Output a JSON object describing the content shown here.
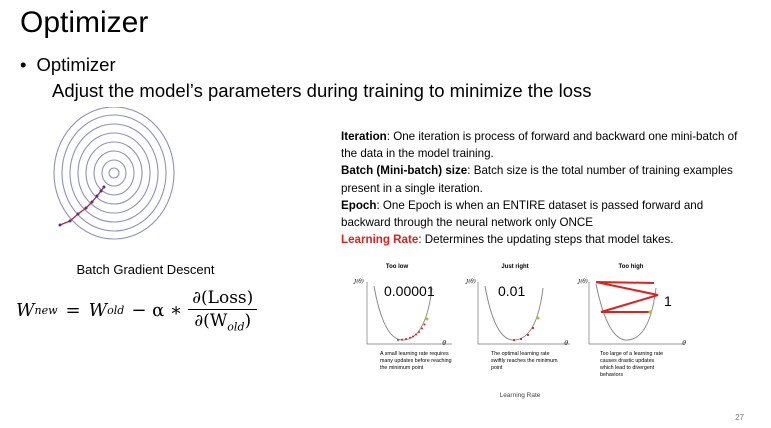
{
  "slide": {
    "title": "Optimizer",
    "bullet": "Optimizer",
    "subtitle": "Adjust the model’s parameters during training to minimize the loss",
    "page_number": "27"
  },
  "left": {
    "caption": "Batch Gradient Descent",
    "formula": {
      "lhs": "W",
      "lhs_sub": "new",
      "eq": "=",
      "term1": "W",
      "term1_sub": "old",
      "op": "− α ∗",
      "numerator": "∂(Loss)",
      "denominator_prefix": "∂(W",
      "denominator_sub": "old",
      "denominator_suffix": ")"
    }
  },
  "definitions": [
    {
      "term": "Iteration",
      "text": ": One iteration is process of forward and backward one mini-batch of the data in the model training.",
      "color": "#000000"
    },
    {
      "term": "Batch (Mini-batch) size",
      "text": ": Batch size is the total number of training examples present in a single iteration.",
      "color": "#000000"
    },
    {
      "term": "Epoch",
      "text": ": One Epoch is when an ENTIRE dataset is passed forward and backward through the neural network only ONCE",
      "color": "#000000"
    },
    {
      "term": "Learning Rate",
      "text": ": Determines the updating steps that model takes.",
      "color": "#e0201b"
    }
  ],
  "figure": {
    "y_label": "J(θ)",
    "x_label": "θ",
    "panels": [
      {
        "title": "Too low",
        "value": "0.00001",
        "caption": "A small learning rate requires many updates before reaching the minimum point"
      },
      {
        "title": "Just right",
        "value": "0.01",
        "caption": "The optimal learning rate swiftly reaches the minimum point"
      },
      {
        "title": "Too high",
        "value": "1",
        "caption": "Too large of a learning rate causes drastic updates which lead to divergent behaviors"
      }
    ],
    "caption": "Learning Rate",
    "colors": {
      "curve": "#8a8a8a",
      "steps": "#e0201b",
      "start": "#9acd32"
    }
  }
}
